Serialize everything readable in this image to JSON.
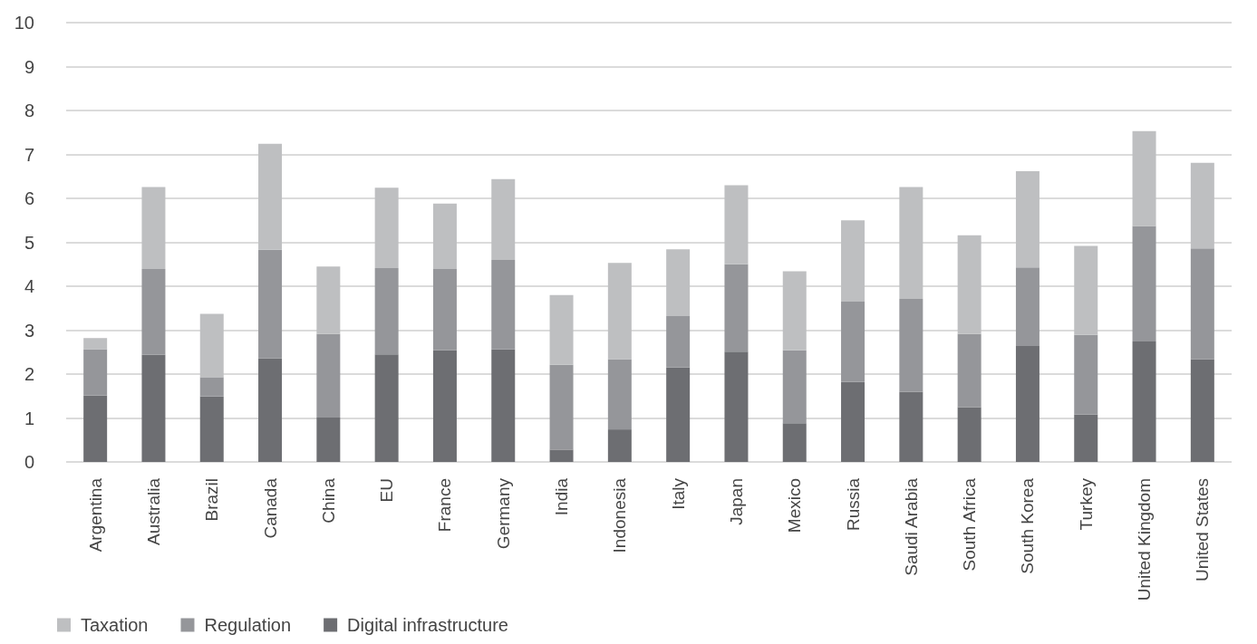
{
  "chart_data": {
    "type": "bar",
    "stacked": true,
    "categories": [
      "Argentina",
      "Australia",
      "Brazil",
      "Canada",
      "China",
      "EU",
      "France",
      "Germany",
      "India",
      "Indonesia",
      "Italy",
      "Japan",
      "Mexico",
      "Russia",
      "Saudi Arabia",
      "South Africa",
      "South Korea",
      "Turkey",
      "United Kingdom",
      "United States"
    ],
    "series": [
      {
        "name": "Digital infrastructure",
        "color": "#6d6e72",
        "values": [
          1.51,
          2.44,
          1.49,
          2.36,
          1.01,
          2.45,
          2.54,
          2.56,
          0.28,
          0.74,
          2.15,
          2.51,
          0.88,
          1.82,
          1.6,
          1.25,
          2.64,
          1.08,
          2.74,
          2.34
        ]
      },
      {
        "name": "Regulation",
        "color": "#95969a",
        "values": [
          1.05,
          1.95,
          0.44,
          2.47,
          1.9,
          1.96,
          1.85,
          2.04,
          1.93,
          1.6,
          1.17,
          1.99,
          1.66,
          1.83,
          2.11,
          1.66,
          1.79,
          1.81,
          2.63,
          2.52
        ]
      },
      {
        "name": "Taxation",
        "color": "#bebfc1",
        "values": [
          0.26,
          1.87,
          1.44,
          2.41,
          1.54,
          1.83,
          1.49,
          1.84,
          1.59,
          2.19,
          1.52,
          1.8,
          1.8,
          1.85,
          2.55,
          2.25,
          2.19,
          2.03,
          2.16,
          1.95
        ]
      }
    ],
    "ylim": [
      0,
      10
    ],
    "yticks": [
      0,
      1,
      2,
      3,
      4,
      5,
      6,
      7,
      8,
      9,
      10
    ],
    "grid": "y",
    "legend": "bottom left"
  }
}
